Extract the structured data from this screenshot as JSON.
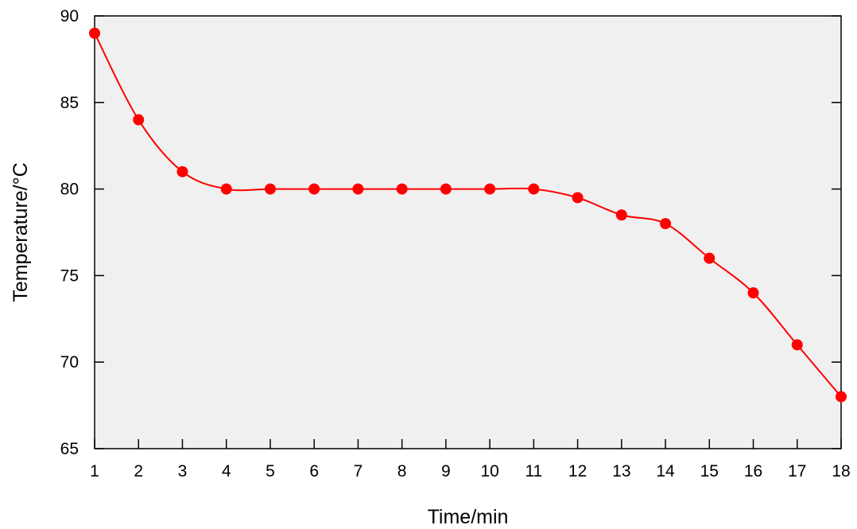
{
  "chart_data": {
    "type": "line",
    "title": "",
    "xlabel": "Time/min",
    "ylabel": "Temperature/°C",
    "x": [
      1,
      2,
      3,
      4,
      5,
      6,
      7,
      8,
      9,
      10,
      11,
      12,
      13,
      14,
      15,
      16,
      17,
      18
    ],
    "series": [
      {
        "values": [
          89,
          84,
          81,
          80,
          80,
          80,
          80,
          80,
          80,
          80,
          80,
          79.5,
          78.5,
          78,
          76,
          74,
          71,
          68
        ]
      }
    ],
    "xlim": [
      1,
      18
    ],
    "ylim": [
      65,
      90
    ],
    "xticks": [
      "1",
      "2",
      "3",
      "4",
      "5",
      "6",
      "7",
      "8",
      "9",
      "10",
      "11",
      "12",
      "13",
      "14",
      "15",
      "16",
      "17",
      "18"
    ],
    "yticks": [
      "65",
      "70",
      "75",
      "80",
      "85",
      "90"
    ],
    "grid": false,
    "smooth": true,
    "colors": {
      "series": "#ff0000",
      "plot_background": "#f0f0f0",
      "axis": "#000000"
    }
  }
}
